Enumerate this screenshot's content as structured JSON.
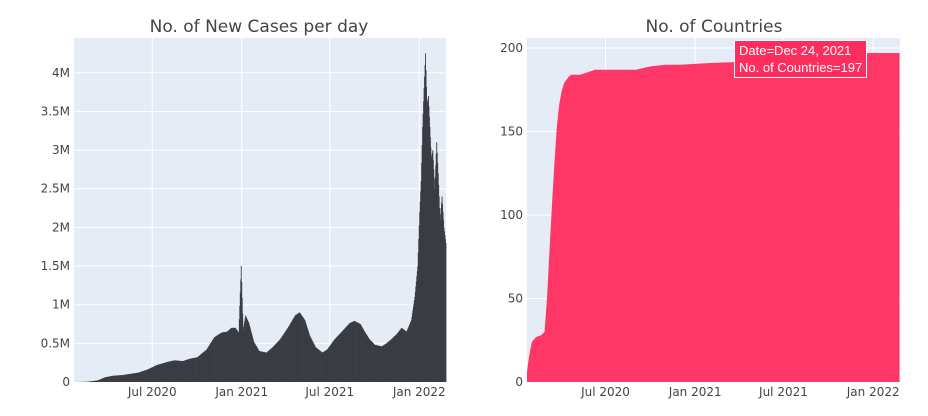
{
  "chart_data": [
    {
      "type": "bar",
      "title": "No. of New Cases per day",
      "xlabel": "",
      "ylabel": "",
      "x_ticks": [
        "Jul 2020",
        "Jan 2021",
        "Jul 2021",
        "Jan 2022"
      ],
      "y_ticks": [
        "0",
        "0.5M",
        "1M",
        "1.5M",
        "2M",
        "2.5M",
        "3M",
        "3.5M",
        "4M"
      ],
      "ylim": [
        0,
        4450000
      ],
      "xlim": [
        "2020-01-22",
        "2022-02-25"
      ],
      "grid": true,
      "bar_color": "#3b3d45",
      "plot_bg": "#e5ecf6",
      "series": [
        {
          "x": [
            "2020-01-22",
            "2020-02-15",
            "2020-03-10",
            "2020-03-25",
            "2020-04-10",
            "2020-05-01",
            "2020-06-01",
            "2020-06-20",
            "2020-07-10",
            "2020-08-01",
            "2020-08-15",
            "2020-09-01",
            "2020-09-15",
            "2020-10-01",
            "2020-10-20",
            "2020-11-05",
            "2020-11-20",
            "2020-12-01",
            "2020-12-10",
            "2020-12-18",
            "2020-12-25",
            "2020-12-30",
            "2021-01-03",
            "2021-01-08",
            "2021-01-15",
            "2021-01-25",
            "2021-02-05",
            "2021-02-20",
            "2021-03-05",
            "2021-03-20",
            "2021-04-05",
            "2021-04-20",
            "2021-04-29",
            "2021-05-10",
            "2021-05-20",
            "2021-06-01",
            "2021-06-15",
            "2021-06-25",
            "2021-07-10",
            "2021-07-25",
            "2021-08-10",
            "2021-08-20",
            "2021-09-01",
            "2021-09-10",
            "2021-09-20",
            "2021-10-01",
            "2021-10-15",
            "2021-10-25",
            "2021-11-05",
            "2021-11-15",
            "2021-11-25",
            "2021-12-05",
            "2021-12-15",
            "2021-12-22",
            "2021-12-28",
            "2022-01-01",
            "2022-01-04",
            "2022-01-07",
            "2022-01-10",
            "2022-01-13",
            "2022-01-16",
            "2022-01-19",
            "2022-01-22",
            "2022-01-25",
            "2022-01-28",
            "2022-02-01",
            "2022-02-05",
            "2022-02-08",
            "2022-02-12",
            "2022-02-16",
            "2022-02-20",
            "2022-02-24"
          ],
          "values": [
            0,
            2000,
            20000,
            60000,
            80000,
            90000,
            120000,
            160000,
            220000,
            260000,
            280000,
            270000,
            300000,
            320000,
            420000,
            580000,
            640000,
            650000,
            700000,
            700000,
            640000,
            1500000,
            680000,
            860000,
            760000,
            520000,
            400000,
            380000,
            450000,
            550000,
            700000,
            860000,
            900000,
            800000,
            600000,
            450000,
            380000,
            420000,
            550000,
            650000,
            760000,
            790000,
            750000,
            650000,
            550000,
            480000,
            460000,
            500000,
            560000,
            620000,
            700000,
            650000,
            800000,
            1100000,
            1500000,
            2200000,
            2600000,
            3300000,
            3800000,
            4250000,
            3600000,
            3700000,
            3300000,
            2900000,
            3000000,
            2500000,
            3100000,
            2700000,
            2100000,
            2400000,
            2000000,
            1800000
          ]
        }
      ]
    },
    {
      "type": "area",
      "title": "No. of Countries",
      "xlabel": "",
      "ylabel": "",
      "x_ticks": [
        "Jul 2020",
        "Jan 2021",
        "Jul 2021",
        "Jan 2022"
      ],
      "y_ticks": [
        "0",
        "50",
        "100",
        "150",
        "200"
      ],
      "ylim": [
        0,
        206
      ],
      "xlim": [
        "2020-01-22",
        "2022-02-25"
      ],
      "grid": true,
      "fill_color": "#ff2d5e",
      "plot_bg": "#e5ecf6",
      "series": [
        {
          "x": [
            "2020-01-22",
            "2020-01-26",
            "2020-02-01",
            "2020-02-10",
            "2020-02-20",
            "2020-02-27",
            "2020-03-03",
            "2020-03-08",
            "2020-03-13",
            "2020-03-18",
            "2020-03-23",
            "2020-03-28",
            "2020-04-02",
            "2020-04-07",
            "2020-04-12",
            "2020-04-17",
            "2020-04-22",
            "2020-05-10",
            "2020-06-10",
            "2020-09-01",
            "2020-10-01",
            "2020-11-01",
            "2020-12-01",
            "2021-02-01",
            "2021-05-01",
            "2021-06-01",
            "2021-09-01",
            "2021-12-24",
            "2022-01-15",
            "2022-02-24"
          ],
          "values": [
            6,
            15,
            24,
            27,
            28,
            30,
            50,
            78,
            105,
            130,
            152,
            166,
            174,
            179,
            181,
            183,
            184,
            184,
            187,
            187,
            189,
            190,
            190,
            191,
            192,
            192,
            193,
            197,
            197,
            197
          ]
        }
      ],
      "hover_label": {
        "date_text": "Date=Dec 24, 2021",
        "count_text": "No. of Countries=197"
      }
    }
  ]
}
